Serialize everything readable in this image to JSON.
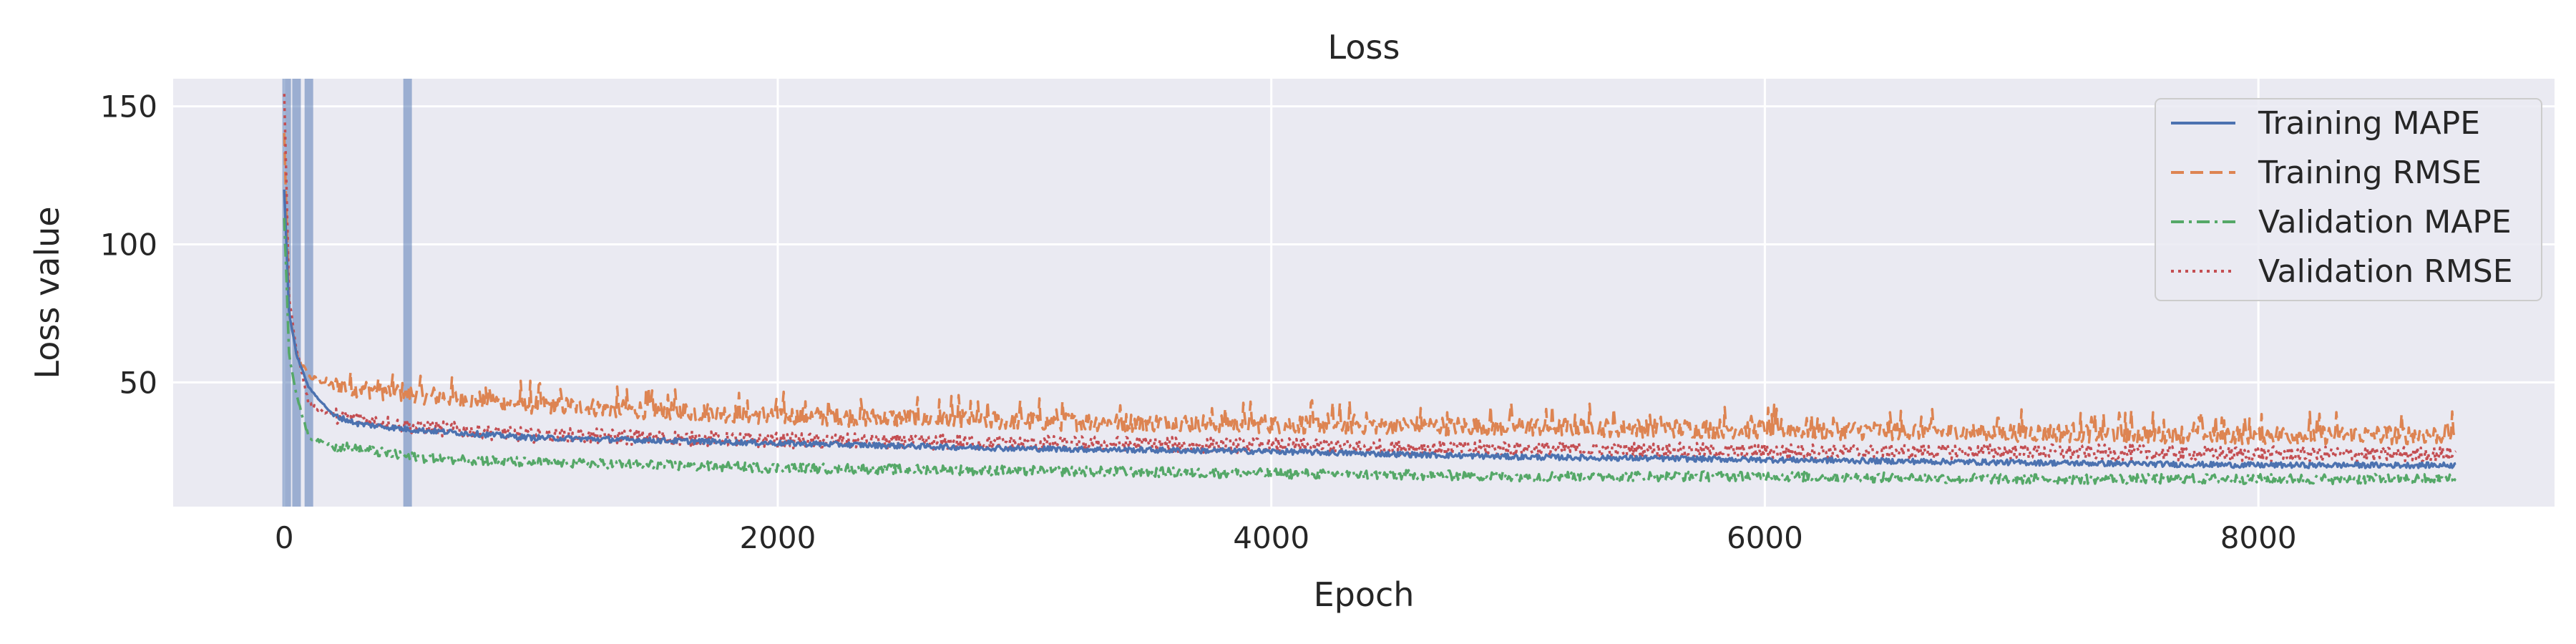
{
  "chart_data": {
    "type": "line",
    "title": "Loss",
    "xlabel": "Epoch",
    "ylabel": "Loss value",
    "xlim": [
      -450,
      9200
    ],
    "ylim": [
      5,
      160
    ],
    "xticks": [
      0,
      2000,
      4000,
      6000,
      8000
    ],
    "yticks": [
      50,
      100,
      150
    ],
    "grid": true,
    "legend_position": "top-right",
    "background": "#EAEAF2",
    "vertical_markers": [
      10,
      50,
      100,
      500
    ],
    "vertical_marker_color": "#4C72B0",
    "series": [
      {
        "name": "Training MAPE",
        "color": "#4C72B0",
        "style": "solid",
        "points": [
          [
            0,
            120
          ],
          [
            20,
            75
          ],
          [
            50,
            60
          ],
          [
            100,
            48
          ],
          [
            200,
            38
          ],
          [
            300,
            35
          ],
          [
            500,
            33
          ],
          [
            1000,
            30
          ],
          [
            2000,
            28
          ],
          [
            3000,
            26
          ],
          [
            4000,
            25
          ],
          [
            5000,
            23
          ],
          [
            6000,
            22
          ],
          [
            7000,
            21
          ],
          [
            8000,
            20
          ],
          [
            8800,
            20
          ]
        ],
        "noise": 1.0
      },
      {
        "name": "Training RMSE",
        "color": "#DD8452",
        "style": "dashed",
        "points": [
          [
            0,
            140
          ],
          [
            20,
            75
          ],
          [
            50,
            60
          ],
          [
            100,
            52
          ],
          [
            200,
            49
          ],
          [
            300,
            48
          ],
          [
            500,
            46
          ],
          [
            1000,
            42
          ],
          [
            2000,
            38
          ],
          [
            3000,
            36
          ],
          [
            4000,
            35
          ],
          [
            5000,
            34
          ],
          [
            6000,
            33
          ],
          [
            7000,
            32
          ],
          [
            8000,
            31
          ],
          [
            8800,
            31
          ]
        ],
        "noise": 3.5
      },
      {
        "name": "Validation MAPE",
        "color": "#55A868",
        "style": "dashdot",
        "points": [
          [
            0,
            110
          ],
          [
            20,
            60
          ],
          [
            50,
            45
          ],
          [
            100,
            30
          ],
          [
            200,
            27
          ],
          [
            300,
            26
          ],
          [
            500,
            23
          ],
          [
            1000,
            21
          ],
          [
            2000,
            19
          ],
          [
            3000,
            18
          ],
          [
            4000,
            17
          ],
          [
            5000,
            16
          ],
          [
            6000,
            16
          ],
          [
            7000,
            15
          ],
          [
            8000,
            15
          ],
          [
            8800,
            15
          ]
        ],
        "noise": 1.8
      },
      {
        "name": "Validation RMSE",
        "color": "#C44E52",
        "style": "dotted",
        "points": [
          [
            0,
            155
          ],
          [
            20,
            80
          ],
          [
            50,
            62
          ],
          [
            100,
            42
          ],
          [
            200,
            38
          ],
          [
            300,
            37
          ],
          [
            500,
            34
          ],
          [
            1000,
            31
          ],
          [
            2000,
            29
          ],
          [
            3000,
            28
          ],
          [
            4000,
            27
          ],
          [
            5000,
            26
          ],
          [
            6000,
            25
          ],
          [
            7000,
            25
          ],
          [
            8000,
            24
          ],
          [
            8800,
            24
          ]
        ],
        "noise": 2.8
      }
    ]
  }
}
